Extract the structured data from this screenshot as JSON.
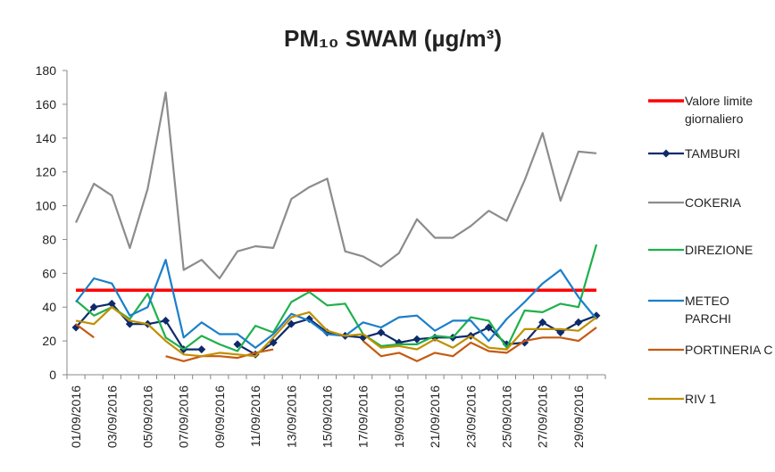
{
  "chart_data": {
    "type": "line",
    "title": "PM₁₀ SWAM (µg/m³)",
    "categories": [
      "01/09/2016",
      null,
      "03/09/2016",
      null,
      "05/09/2016",
      null,
      "07/09/2016",
      null,
      "09/09/2016",
      null,
      "11/09/2016",
      null,
      "13/09/2016",
      null,
      "15/09/2016",
      null,
      "17/09/2016",
      null,
      "19/09/2016",
      null,
      "21/09/2016",
      null,
      "23/09/2016",
      null,
      "25/09/2016",
      null,
      "27/09/2016",
      null,
      "29/09/2016",
      null
    ],
    "ylim": [
      0,
      180
    ],
    "yticks": [
      0,
      20,
      40,
      60,
      80,
      100,
      120,
      140,
      160,
      180
    ],
    "grid": false,
    "legend": "right",
    "series": [
      {
        "name": "Valore limite giornaliero",
        "color": "#ff0000",
        "values": [
          50,
          50,
          50,
          50,
          50,
          50,
          50,
          50,
          50,
          50,
          50,
          50,
          50,
          50,
          50,
          50,
          50,
          50,
          50,
          50,
          50,
          50,
          50,
          50,
          50,
          50,
          50,
          50,
          50,
          50
        ]
      },
      {
        "name": "TAMBURI",
        "color": "#0d2a6b",
        "marker": "diamond",
        "values": [
          28,
          40,
          42,
          30,
          30,
          32,
          15,
          15,
          null,
          18,
          12,
          19,
          30,
          33,
          25,
          23,
          22,
          25,
          19,
          21,
          22,
          22,
          23,
          28,
          18,
          19,
          31,
          25,
          31,
          35
        ]
      },
      {
        "name": "COKERIA",
        "color": "#8c8c8c",
        "values": [
          90,
          113,
          106,
          75,
          110,
          167,
          62,
          68,
          57,
          73,
          76,
          75,
          104,
          111,
          116,
          73,
          70,
          64,
          72,
          92,
          81,
          81,
          88,
          97,
          91,
          115,
          143,
          103,
          132,
          131
        ]
      },
      {
        "name": "DIREZIONE",
        "color": "#1fb04c",
        "values": [
          44,
          35,
          40,
          33,
          48,
          22,
          15,
          23,
          18,
          14,
          29,
          25,
          43,
          49,
          41,
          42,
          24,
          17,
          18,
          18,
          23,
          22,
          34,
          32,
          16,
          38,
          37,
          42,
          40,
          77
        ]
      },
      {
        "name": "METEO PARCHI",
        "color": "#1a7fc9",
        "values": [
          43,
          57,
          54,
          35,
          40,
          68,
          22,
          31,
          24,
          24,
          16,
          24,
          36,
          32,
          24,
          23,
          31,
          28,
          34,
          35,
          26,
          32,
          32,
          20,
          33,
          43,
          54,
          62,
          46,
          33
        ]
      },
      {
        "name": "PORTINERIA C",
        "color": "#c55a11",
        "values": [
          30,
          22,
          null,
          null,
          null,
          11,
          8,
          11,
          11,
          10,
          13,
          15,
          null,
          null,
          null,
          null,
          20,
          11,
          13,
          8,
          13,
          11,
          19,
          14,
          13,
          20,
          22,
          22,
          20,
          28
        ]
      },
      {
        "name": "RIV 1",
        "color": "#bf9000",
        "values": [
          32,
          30,
          40,
          32,
          30,
          20,
          12,
          11,
          13,
          12,
          11,
          22,
          34,
          37,
          26,
          23,
          24,
          16,
          17,
          15,
          21,
          16,
          23,
          16,
          15,
          27,
          27,
          27,
          26,
          34
        ]
      }
    ]
  }
}
